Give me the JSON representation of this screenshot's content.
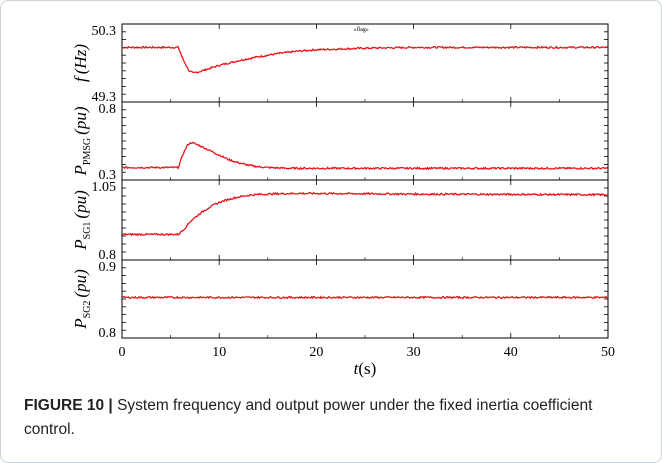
{
  "caption": {
    "label": "FIGURE 10",
    "separator": "|",
    "text": "System frequency and output power under the fixed inertia coefficient control."
  },
  "chart_data": {
    "type": "line",
    "line_color": "#e8141c",
    "shared_x": {
      "label_var": "t",
      "label_unit": "(s)",
      "lim": [
        0,
        50
      ],
      "ticks": [
        "0",
        "10",
        "20",
        "30",
        "40",
        "50"
      ]
    },
    "panels": [
      {
        "id": "f",
        "ylabel_var": "f",
        "ylabel_sub": "",
        "ylabel_unit": "(Hz)",
        "ylim": [
          49.3,
          50.3
        ],
        "tick_labels": [
          "50.3",
          "49.3"
        ],
        "annotation": "«flag»",
        "series": {
          "x": [
            0,
            5.8,
            6.3,
            6.9,
            7.3,
            8,
            9,
            10,
            12,
            14,
            16,
            18,
            20,
            25,
            30,
            35,
            40,
            45,
            50
          ],
          "y": [
            50.0,
            50.0,
            49.84,
            49.7,
            49.67,
            49.69,
            49.73,
            49.77,
            49.83,
            49.88,
            49.92,
            49.95,
            49.97,
            49.99,
            50.0,
            50.0,
            50.0,
            50.0,
            50.0
          ]
        }
      },
      {
        "id": "pmsg",
        "ylabel_var": "P",
        "ylabel_sub": "PMSG",
        "ylabel_unit": "(pu)",
        "ylim": [
          0.3,
          0.8
        ],
        "tick_labels": [
          "0.8",
          "0.3"
        ],
        "series": {
          "x": [
            0,
            5.8,
            6.3,
            6.8,
            7.2,
            8,
            9,
            10,
            11,
            12,
            13,
            14,
            15,
            17,
            20,
            30,
            40,
            50
          ],
          "y": [
            0.38,
            0.38,
            0.47,
            0.53,
            0.54,
            0.52,
            0.49,
            0.46,
            0.43,
            0.41,
            0.395,
            0.385,
            0.38,
            0.375,
            0.375,
            0.375,
            0.375,
            0.375
          ]
        }
      },
      {
        "id": "sg1",
        "ylabel_var": "P",
        "ylabel_sub": "SG1",
        "ylabel_unit": "(pu)",
        "ylim": [
          0.8,
          1.05
        ],
        "tick_labels": [
          "1.05",
          "0.8"
        ],
        "series": {
          "x": [
            0,
            5.8,
            6.5,
            7,
            8,
            9,
            10,
            11,
            12,
            13,
            14,
            16,
            18,
            20,
            25,
            30,
            40,
            50
          ],
          "y": [
            0.88,
            0.88,
            0.9,
            0.92,
            0.945,
            0.965,
            0.98,
            0.99,
            0.997,
            1.002,
            1.005,
            1.007,
            1.008,
            1.008,
            1.007,
            1.006,
            1.005,
            1.004
          ]
        }
      },
      {
        "id": "sg2",
        "ylabel_var": "P",
        "ylabel_sub": "SG2",
        "ylabel_unit": "(pu)",
        "ylim": [
          0.8,
          0.9
        ],
        "tick_labels": [
          "0.9",
          "0.8"
        ],
        "series": {
          "x": [
            0,
            10,
            20,
            30,
            40,
            50
          ],
          "y": [
            0.852,
            0.852,
            0.852,
            0.852,
            0.852,
            0.852
          ]
        }
      }
    ]
  }
}
